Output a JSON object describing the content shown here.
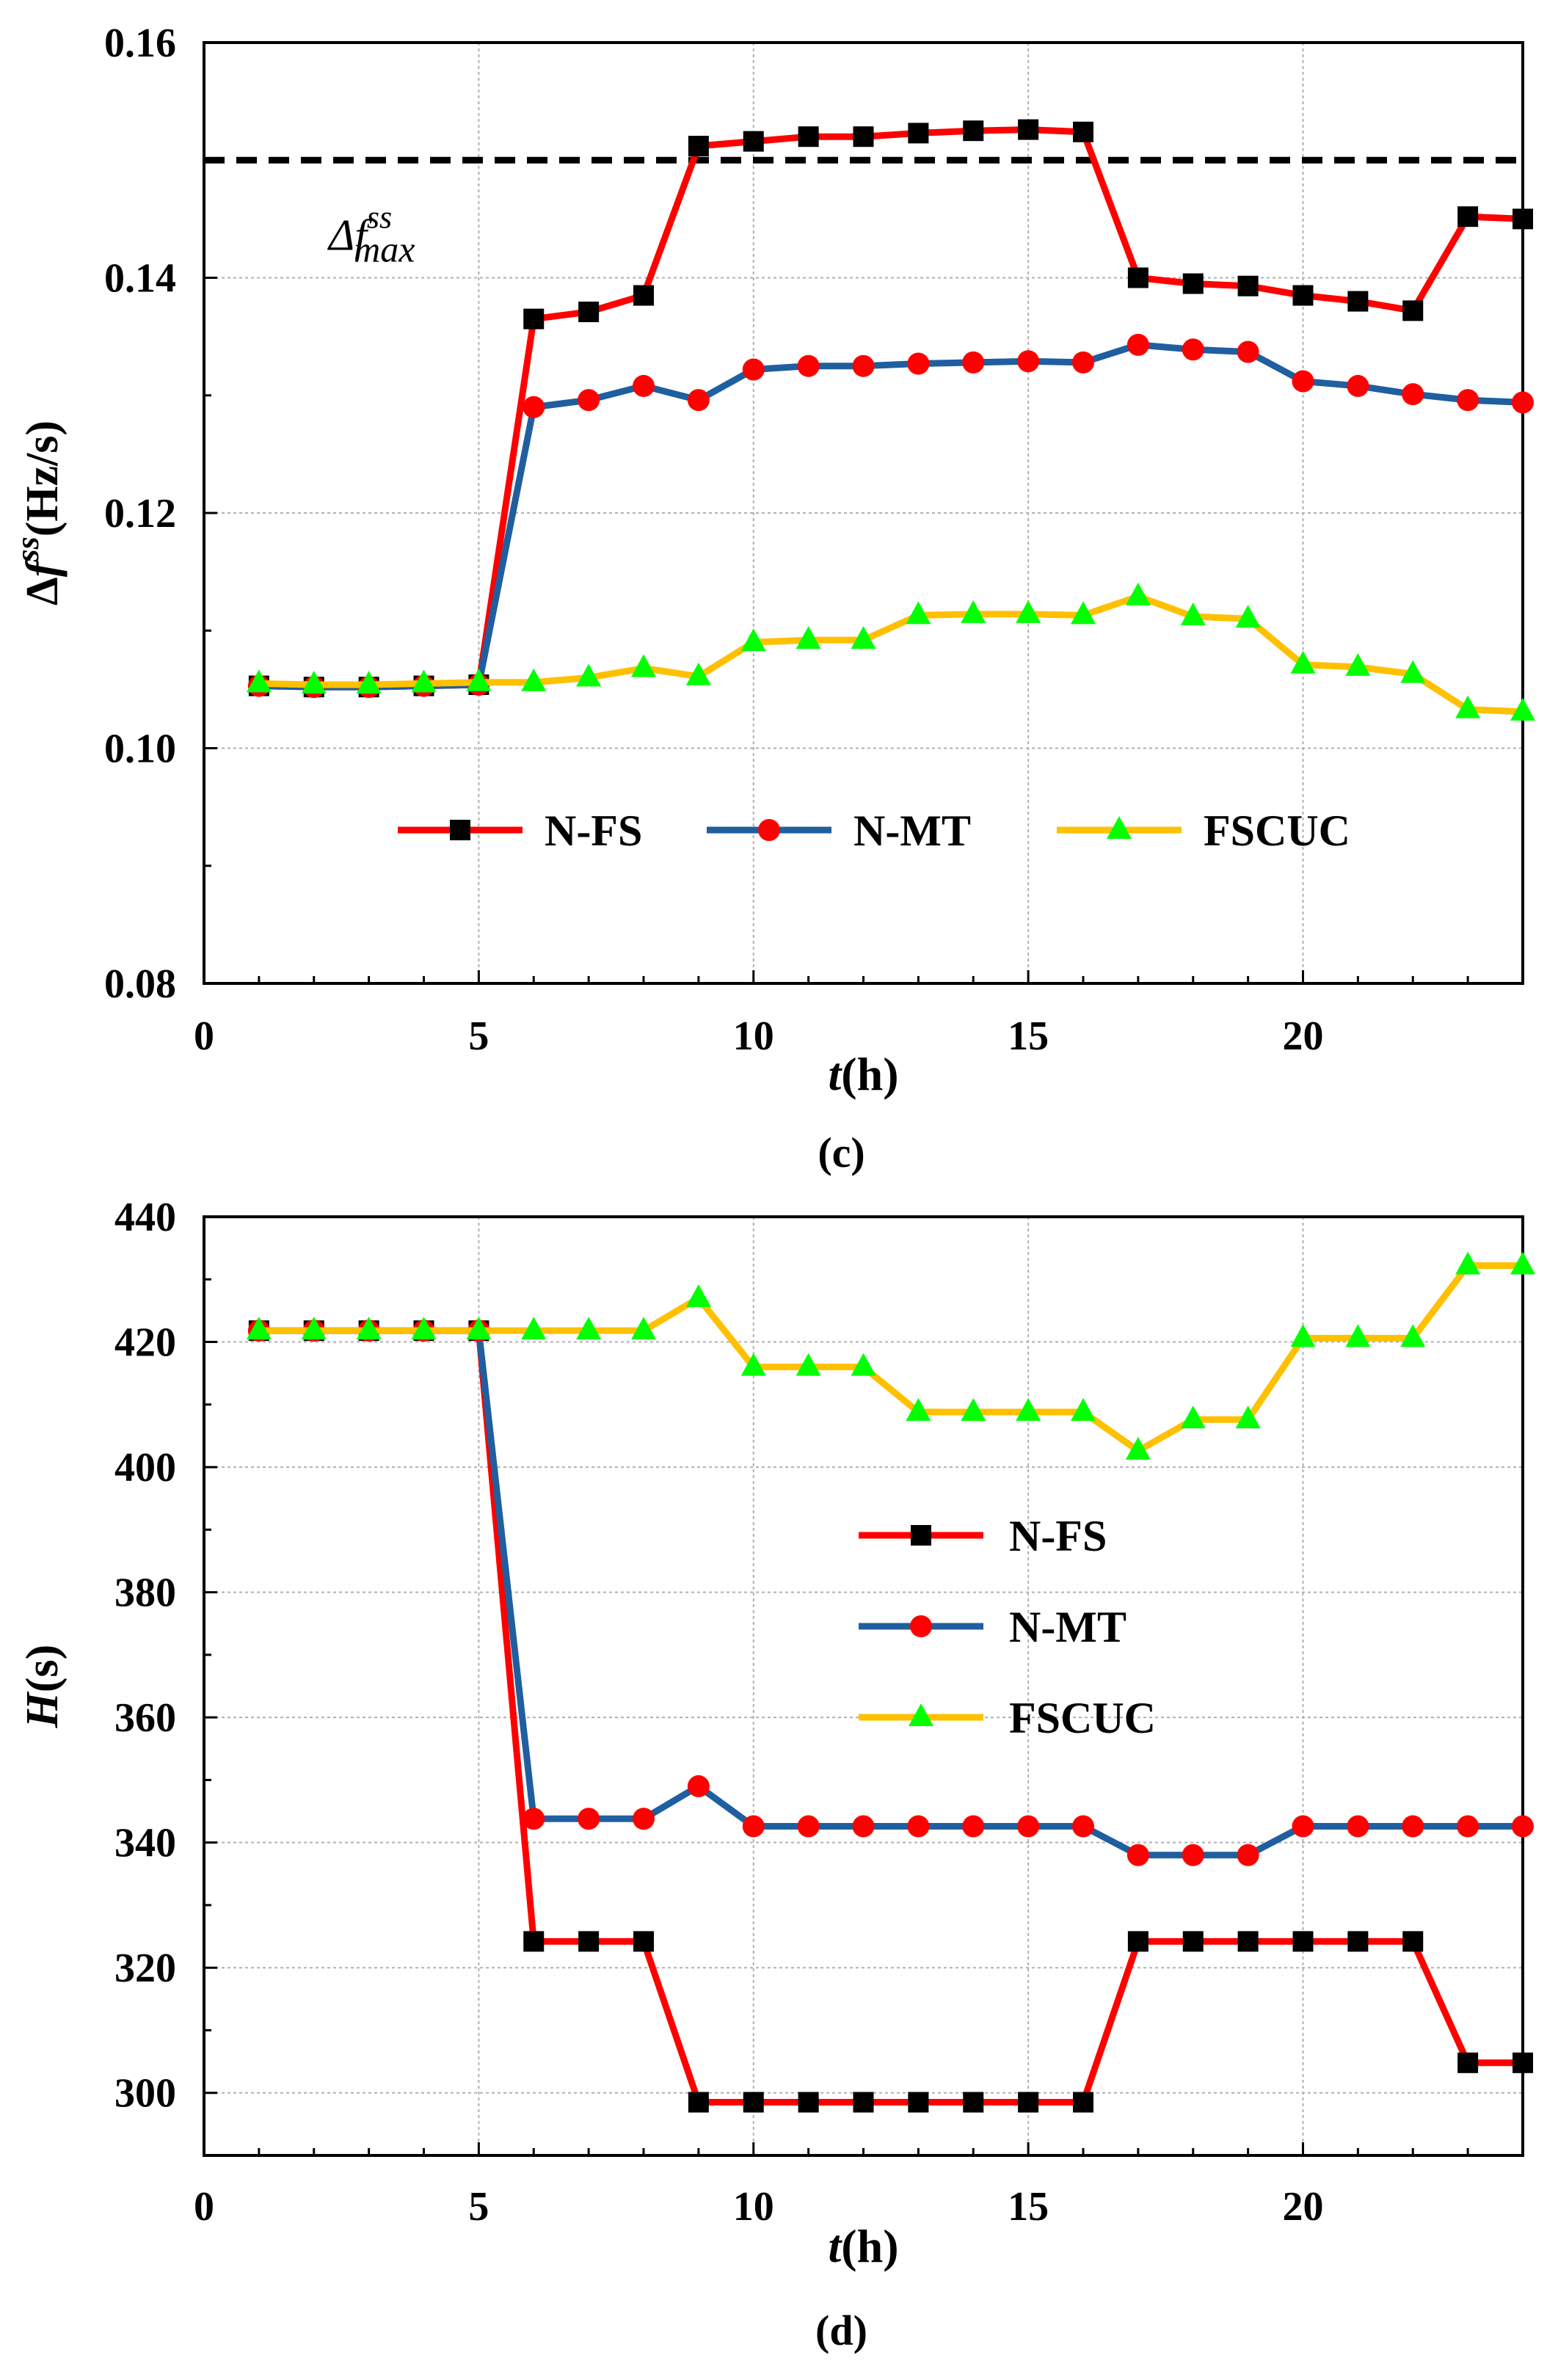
{
  "chart_data": [
    {
      "type": "line",
      "panel_label": "(c)",
      "ylabel_base": "Δ",
      "ylabel_var": "f",
      "ylabel_sup": "ss",
      "ylabel_unit": "(Hz/s)",
      "xlabel_var": "t",
      "xlabel_unit": "(h)",
      "xlim": [
        0,
        24
      ],
      "ylim": [
        0.08,
        0.16
      ],
      "xticks": [
        0,
        5,
        10,
        15,
        20
      ],
      "yticks": [
        "0.08",
        "0.10",
        "0.12",
        "0.14",
        "0.16"
      ],
      "grid": true,
      "legend_position": "bottom-center",
      "x": [
        1,
        2,
        3,
        4,
        5,
        6,
        7,
        8,
        9,
        10,
        11,
        12,
        13,
        14,
        15,
        16,
        17,
        18,
        19,
        20,
        21,
        22,
        23,
        24
      ],
      "series": [
        {
          "name": "N-FS",
          "color": "#ff0000",
          "marker": "square",
          "marker_color": "#000000",
          "values": [
            0.1053,
            0.1052,
            0.1052,
            0.1053,
            0.1054,
            0.1365,
            0.1371,
            0.1385,
            0.1512,
            0.1516,
            0.152,
            0.152,
            0.1523,
            0.1525,
            0.1526,
            0.1524,
            0.14,
            0.1395,
            0.1393,
            0.1385,
            0.138,
            0.1372,
            0.1452,
            0.145
          ]
        },
        {
          "name": "N-MT",
          "color": "#1f5fa0",
          "marker": "circle",
          "marker_color": "#ff0000",
          "values": [
            0.1053,
            0.1052,
            0.1052,
            0.1053,
            0.1054,
            0.129,
            0.1296,
            0.1308,
            0.1296,
            0.1322,
            0.1325,
            0.1325,
            0.1327,
            0.1328,
            0.1329,
            0.1328,
            0.1343,
            0.1339,
            0.1337,
            0.1312,
            0.1308,
            0.1301,
            0.1296,
            0.1294
          ]
        },
        {
          "name": "FSCUC",
          "color": "#ffc000",
          "marker": "triangle",
          "marker_color": "#00ff00",
          "values": [
            0.1055,
            0.1054,
            0.1054,
            0.1055,
            0.1056,
            0.1056,
            0.106,
            0.1068,
            0.1061,
            0.109,
            0.1092,
            0.1092,
            0.1113,
            0.1114,
            0.1114,
            0.1113,
            0.1129,
            0.1112,
            0.111,
            0.1071,
            0.1069,
            0.1063,
            0.1033,
            0.1031
          ]
        }
      ],
      "reference_line": {
        "value": 0.15,
        "style": "dashed",
        "color": "#000000",
        "label_base": "Δf",
        "label_sup": "ss",
        "label_sub": "max"
      }
    },
    {
      "type": "line",
      "panel_label": "(d)",
      "ylabel_var": "H",
      "ylabel_unit": "(s)",
      "xlabel_var": "t",
      "xlabel_unit": "(h)",
      "xlim": [
        0,
        24
      ],
      "ylim": [
        290,
        440
      ],
      "xticks": [
        0,
        5,
        10,
        15,
        20
      ],
      "yticks": [
        "300",
        "320",
        "340",
        "360",
        "380",
        "400",
        "420",
        "440"
      ],
      "grid": true,
      "legend_position": "center",
      "x": [
        1,
        2,
        3,
        4,
        5,
        6,
        7,
        8,
        9,
        10,
        11,
        12,
        13,
        14,
        15,
        16,
        17,
        18,
        19,
        20,
        21,
        22,
        23,
        24
      ],
      "series": [
        {
          "name": "N-FS",
          "color": "#ff0000",
          "marker": "square",
          "marker_color": "#000000",
          "values": [
            421.8,
            421.8,
            421.8,
            421.8,
            421.8,
            324.2,
            324.2,
            324.2,
            298.5,
            298.5,
            298.5,
            298.5,
            298.5,
            298.5,
            298.5,
            298.5,
            324.2,
            324.2,
            324.2,
            324.2,
            324.2,
            324.2,
            304.8,
            304.8
          ]
        },
        {
          "name": "N-MT",
          "color": "#1f5fa0",
          "marker": "circle",
          "marker_color": "#ff0000",
          "values": [
            421.8,
            421.8,
            421.8,
            421.8,
            421.8,
            343.8,
            343.8,
            343.8,
            349.0,
            342.6,
            342.6,
            342.6,
            342.6,
            342.6,
            342.6,
            342.6,
            338.0,
            338.0,
            338.0,
            342.6,
            342.6,
            342.6,
            342.6,
            342.6
          ]
        },
        {
          "name": "FSCUC",
          "color": "#ffc000",
          "marker": "triangle",
          "marker_color": "#00ff00",
          "values": [
            421.8,
            421.8,
            421.8,
            421.8,
            421.8,
            421.8,
            421.8,
            421.8,
            427.0,
            416.0,
            416.0,
            416.0,
            408.8,
            408.8,
            408.8,
            408.8,
            402.6,
            407.6,
            407.6,
            420.6,
            420.6,
            420.6,
            432.2,
            432.2
          ]
        }
      ]
    }
  ]
}
